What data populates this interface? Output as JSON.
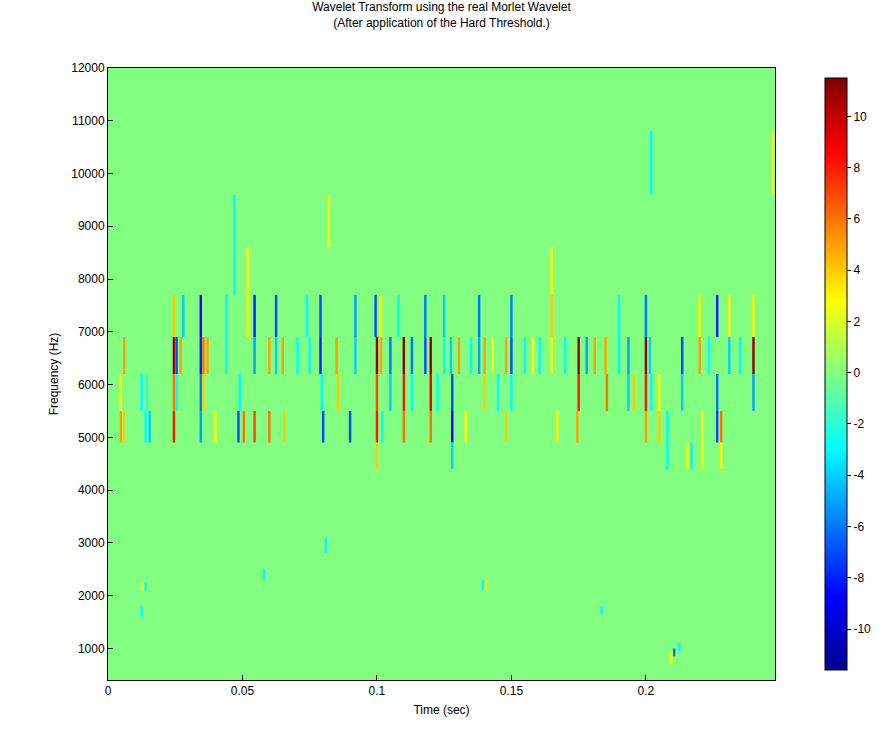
{
  "chart_data": {
    "type": "heatmap",
    "title": "Wavelet Transform using the real Morlet Wavelet",
    "subtitle": "(After application of the Hard Threshold.)",
    "x_label": "Time (sec)",
    "y_label": "Frequency (Hz)",
    "xlim": [
      0,
      0.248
    ],
    "xticks": [
      0,
      0.05,
      0.1,
      0.15,
      0.2
    ],
    "ylim": [
      400,
      12000
    ],
    "yticks": [
      1000,
      2000,
      3000,
      4000,
      5000,
      6000,
      7000,
      8000,
      9000,
      10000,
      11000,
      12000
    ],
    "colorbar_range": [
      -11.6,
      11.5
    ],
    "colorbar_ticks": [
      -10,
      -8,
      -6,
      -4,
      -2,
      0,
      2,
      4,
      6,
      8,
      10
    ],
    "cells": [
      {
        "time": 0.0048,
        "f_low": 4900,
        "f_high": 5500,
        "value": 5
      },
      {
        "time": 0.0048,
        "f_low": 5500,
        "f_high": 6200,
        "value": 3
      },
      {
        "time": 0.006,
        "f_low": 6200,
        "f_high": 6900,
        "value": 5
      },
      {
        "time": 0.006,
        "f_low": 4900,
        "f_high": 5500,
        "value": 4
      },
      {
        "time": 0.0125,
        "f_low": 5500,
        "f_high": 6200,
        "value": -3
      },
      {
        "time": 0.0125,
        "f_low": 1600,
        "f_high": 1800,
        "value": -3
      },
      {
        "time": 0.013,
        "f_low": 2100,
        "f_high": 2250,
        "value": 3
      },
      {
        "time": 0.014,
        "f_low": 2100,
        "f_high": 2250,
        "value": -3
      },
      {
        "time": 0.014,
        "f_low": 4900,
        "f_high": 5500,
        "value": -3
      },
      {
        "time": 0.0145,
        "f_low": 5500,
        "f_high": 6200,
        "value": -2
      },
      {
        "time": 0.0155,
        "f_low": 4900,
        "f_high": 5500,
        "value": -4
      },
      {
        "time": 0.0245,
        "f_low": 6900,
        "f_high": 7700,
        "value": 4
      },
      {
        "time": 0.0245,
        "f_low": 6200,
        "f_high": 6900,
        "value": 11
      },
      {
        "time": 0.0245,
        "f_low": 5500,
        "f_high": 6200,
        "value": 6
      },
      {
        "time": 0.0245,
        "f_low": 4900,
        "f_high": 5500,
        "value": 8
      },
      {
        "time": 0.0255,
        "f_low": 6200,
        "f_high": 6900,
        "value": -7
      },
      {
        "time": 0.0255,
        "f_low": 5500,
        "f_high": 6200,
        "value": -3
      },
      {
        "time": 0.027,
        "f_low": 6200,
        "f_high": 6900,
        "value": 5
      },
      {
        "time": 0.028,
        "f_low": 6900,
        "f_high": 7700,
        "value": -4
      },
      {
        "time": 0.0345,
        "f_low": 6900,
        "f_high": 7700,
        "value": -9
      },
      {
        "time": 0.0345,
        "f_low": 6200,
        "f_high": 6900,
        "value": -8
      },
      {
        "time": 0.0345,
        "f_low": 5500,
        "f_high": 6200,
        "value": -6
      },
      {
        "time": 0.0345,
        "f_low": 4900,
        "f_high": 5500,
        "value": -5
      },
      {
        "time": 0.0355,
        "f_low": 6200,
        "f_high": 6900,
        "value": 6
      },
      {
        "time": 0.0355,
        "f_low": 5500,
        "f_high": 6200,
        "value": 4
      },
      {
        "time": 0.037,
        "f_low": 6200,
        "f_high": 6900,
        "value": 5
      },
      {
        "time": 0.04,
        "f_low": 4900,
        "f_high": 5500,
        "value": 3
      },
      {
        "time": 0.044,
        "f_low": 6900,
        "f_high": 7700,
        "value": -3
      },
      {
        "time": 0.044,
        "f_low": 6200,
        "f_high": 6900,
        "value": -3
      },
      {
        "time": 0.047,
        "f_low": 7700,
        "f_high": 8600,
        "value": -3
      },
      {
        "time": 0.047,
        "f_low": 8600,
        "f_high": 9600,
        "value": -3
      },
      {
        "time": 0.0485,
        "f_low": 4900,
        "f_high": 5500,
        "value": -7
      },
      {
        "time": 0.049,
        "f_low": 5500,
        "f_high": 6200,
        "value": -3
      },
      {
        "time": 0.0505,
        "f_low": 4900,
        "f_high": 5500,
        "value": 6
      },
      {
        "time": 0.052,
        "f_low": 7700,
        "f_high": 8600,
        "value": 3
      },
      {
        "time": 0.052,
        "f_low": 6900,
        "f_high": 7700,
        "value": 3
      },
      {
        "time": 0.0545,
        "f_low": 6900,
        "f_high": 7700,
        "value": -8
      },
      {
        "time": 0.0545,
        "f_low": 6200,
        "f_high": 6900,
        "value": -5
      },
      {
        "time": 0.0545,
        "f_low": 4900,
        "f_high": 5500,
        "value": 7
      },
      {
        "time": 0.058,
        "f_low": 2300,
        "f_high": 2500,
        "value": -3
      },
      {
        "time": 0.06,
        "f_low": 4900,
        "f_high": 5500,
        "value": 6
      },
      {
        "time": 0.06,
        "f_low": 6200,
        "f_high": 6900,
        "value": 5
      },
      {
        "time": 0.0625,
        "f_low": 6900,
        "f_high": 7700,
        "value": -7
      },
      {
        "time": 0.0625,
        "f_low": 6200,
        "f_high": 6900,
        "value": -4
      },
      {
        "time": 0.065,
        "f_low": 6200,
        "f_high": 6900,
        "value": 5
      },
      {
        "time": 0.0655,
        "f_low": 4900,
        "f_high": 5500,
        "value": 4
      },
      {
        "time": 0.0705,
        "f_low": 6200,
        "f_high": 6900,
        "value": -3
      },
      {
        "time": 0.074,
        "f_low": 6900,
        "f_high": 7700,
        "value": -3
      },
      {
        "time": 0.075,
        "f_low": 6200,
        "f_high": 6900,
        "value": -3
      },
      {
        "time": 0.079,
        "f_low": 6900,
        "f_high": 7700,
        "value": -7
      },
      {
        "time": 0.079,
        "f_low": 6200,
        "f_high": 6900,
        "value": -8
      },
      {
        "time": 0.0795,
        "f_low": 5500,
        "f_high": 6200,
        "value": -3
      },
      {
        "time": 0.08,
        "f_low": 4900,
        "f_high": 5500,
        "value": -7
      },
      {
        "time": 0.081,
        "f_low": 2800,
        "f_high": 3100,
        "value": -3
      },
      {
        "time": 0.082,
        "f_low": 8600,
        "f_high": 9600,
        "value": 3
      },
      {
        "time": 0.085,
        "f_low": 6200,
        "f_high": 6900,
        "value": 5
      },
      {
        "time": 0.0855,
        "f_low": 5500,
        "f_high": 6200,
        "value": 4
      },
      {
        "time": 0.09,
        "f_low": 4900,
        "f_high": 5500,
        "value": -7
      },
      {
        "time": 0.092,
        "f_low": 6900,
        "f_high": 7700,
        "value": -5
      },
      {
        "time": 0.092,
        "f_low": 6200,
        "f_high": 6900,
        "value": -4
      },
      {
        "time": 0.0995,
        "f_low": 6900,
        "f_high": 7700,
        "value": -7
      },
      {
        "time": 0.1,
        "f_low": 6200,
        "f_high": 6900,
        "value": 11
      },
      {
        "time": 0.1,
        "f_low": 5500,
        "f_high": 6200,
        "value": 7
      },
      {
        "time": 0.1,
        "f_low": 4900,
        "f_high": 5500,
        "value": 8
      },
      {
        "time": 0.1,
        "f_low": 4400,
        "f_high": 4900,
        "value": 4
      },
      {
        "time": 0.1015,
        "f_low": 6900,
        "f_high": 7700,
        "value": 3
      },
      {
        "time": 0.1015,
        "f_low": 6200,
        "f_high": 6900,
        "value": 5
      },
      {
        "time": 0.102,
        "f_low": 4900,
        "f_high": 5500,
        "value": -3
      },
      {
        "time": 0.105,
        "f_low": 6200,
        "f_high": 6900,
        "value": -6
      },
      {
        "time": 0.105,
        "f_low": 5500,
        "f_high": 6200,
        "value": -4
      },
      {
        "time": 0.108,
        "f_low": 6900,
        "f_high": 7700,
        "value": -3
      },
      {
        "time": 0.11,
        "f_low": 6200,
        "f_high": 6900,
        "value": 11
      },
      {
        "time": 0.11,
        "f_low": 5500,
        "f_high": 6200,
        "value": 8
      },
      {
        "time": 0.11,
        "f_low": 4900,
        "f_high": 5500,
        "value": 6
      },
      {
        "time": 0.113,
        "f_low": 6200,
        "f_high": 6900,
        "value": -6
      },
      {
        "time": 0.113,
        "f_low": 5500,
        "f_high": 6200,
        "value": -3
      },
      {
        "time": 0.118,
        "f_low": 6900,
        "f_high": 7700,
        "value": -6
      },
      {
        "time": 0.118,
        "f_low": 6200,
        "f_high": 6900,
        "value": -7
      },
      {
        "time": 0.12,
        "f_low": 6200,
        "f_high": 6900,
        "value": 11
      },
      {
        "time": 0.12,
        "f_low": 5500,
        "f_high": 6200,
        "value": 9
      },
      {
        "time": 0.12,
        "f_low": 4900,
        "f_high": 5500,
        "value": 6
      },
      {
        "time": 0.1225,
        "f_low": 5500,
        "f_high": 6200,
        "value": -3
      },
      {
        "time": 0.125,
        "f_low": 6900,
        "f_high": 7700,
        "value": -4
      },
      {
        "time": 0.125,
        "f_low": 6200,
        "f_high": 6900,
        "value": -3
      },
      {
        "time": 0.1275,
        "f_low": 6200,
        "f_high": 6900,
        "value": -4
      },
      {
        "time": 0.128,
        "f_low": 5500,
        "f_high": 6200,
        "value": -7
      },
      {
        "time": 0.128,
        "f_low": 4900,
        "f_high": 5500,
        "value": -9
      },
      {
        "time": 0.128,
        "f_low": 4400,
        "f_high": 4900,
        "value": -4
      },
      {
        "time": 0.1305,
        "f_low": 6200,
        "f_high": 6900,
        "value": 5
      },
      {
        "time": 0.133,
        "f_low": 4900,
        "f_high": 5500,
        "value": 3
      },
      {
        "time": 0.135,
        "f_low": 6200,
        "f_high": 6900,
        "value": -3
      },
      {
        "time": 0.138,
        "f_low": 6900,
        "f_high": 7700,
        "value": -6
      },
      {
        "time": 0.138,
        "f_low": 6200,
        "f_high": 6900,
        "value": -5
      },
      {
        "time": 0.1395,
        "f_low": 2100,
        "f_high": 2300,
        "value": -3
      },
      {
        "time": 0.1405,
        "f_low": 2100,
        "f_high": 2300,
        "value": 3
      },
      {
        "time": 0.14,
        "f_low": 6200,
        "f_high": 6900,
        "value": 5
      },
      {
        "time": 0.14,
        "f_low": 5500,
        "f_high": 6200,
        "value": 4
      },
      {
        "time": 0.143,
        "f_low": 6200,
        "f_high": 6900,
        "value": 3
      },
      {
        "time": 0.145,
        "f_low": 5500,
        "f_high": 6200,
        "value": -3
      },
      {
        "time": 0.148,
        "f_low": 6200,
        "f_high": 6900,
        "value": 5
      },
      {
        "time": 0.148,
        "f_low": 4900,
        "f_high": 5500,
        "value": 4
      },
      {
        "time": 0.15,
        "f_low": 6900,
        "f_high": 7700,
        "value": -6
      },
      {
        "time": 0.15,
        "f_low": 6200,
        "f_high": 6900,
        "value": -7
      },
      {
        "time": 0.15,
        "f_low": 5500,
        "f_high": 6200,
        "value": -3
      },
      {
        "time": 0.155,
        "f_low": 6200,
        "f_high": 6900,
        "value": -3
      },
      {
        "time": 0.158,
        "f_low": 6200,
        "f_high": 6900,
        "value": 3
      },
      {
        "time": 0.1605,
        "f_low": 6200,
        "f_high": 6900,
        "value": -3
      },
      {
        "time": 0.165,
        "f_low": 7700,
        "f_high": 8600,
        "value": 3
      },
      {
        "time": 0.165,
        "f_low": 6900,
        "f_high": 7700,
        "value": 4
      },
      {
        "time": 0.165,
        "f_low": 6200,
        "f_high": 6900,
        "value": 3
      },
      {
        "time": 0.167,
        "f_low": 4900,
        "f_high": 5500,
        "value": 3
      },
      {
        "time": 0.17,
        "f_low": 6200,
        "f_high": 6900,
        "value": -3
      },
      {
        "time": 0.175,
        "f_low": 6200,
        "f_high": 6900,
        "value": 11
      },
      {
        "time": 0.175,
        "f_low": 5500,
        "f_high": 6200,
        "value": 8
      },
      {
        "time": 0.1745,
        "f_low": 4900,
        "f_high": 5500,
        "value": 5
      },
      {
        "time": 0.178,
        "f_low": 6200,
        "f_high": 6900,
        "value": -5
      },
      {
        "time": 0.181,
        "f_low": 6200,
        "f_high": 6900,
        "value": 5
      },
      {
        "time": 0.1835,
        "f_low": 1650,
        "f_high": 1800,
        "value": -3
      },
      {
        "time": 0.185,
        "f_low": 6200,
        "f_high": 6900,
        "value": 5
      },
      {
        "time": 0.1855,
        "f_low": 5500,
        "f_high": 6200,
        "value": 6
      },
      {
        "time": 0.19,
        "f_low": 6900,
        "f_high": 7700,
        "value": -3
      },
      {
        "time": 0.19,
        "f_low": 6200,
        "f_high": 6900,
        "value": -3
      },
      {
        "time": 0.1935,
        "f_low": 6200,
        "f_high": 6900,
        "value": -5
      },
      {
        "time": 0.1935,
        "f_low": 5500,
        "f_high": 6200,
        "value": -4
      },
      {
        "time": 0.1955,
        "f_low": 5500,
        "f_high": 6200,
        "value": 4
      },
      {
        "time": 0.2,
        "f_low": 6900,
        "f_high": 7700,
        "value": -6
      },
      {
        "time": 0.2,
        "f_low": 6200,
        "f_high": 6900,
        "value": 11
      },
      {
        "time": 0.2,
        "f_low": 5500,
        "f_high": 6200,
        "value": 8
      },
      {
        "time": 0.2,
        "f_low": 4900,
        "f_high": 5500,
        "value": 5
      },
      {
        "time": 0.202,
        "f_low": 9600,
        "f_high": 10800,
        "value": -3
      },
      {
        "time": 0.202,
        "f_low": 5500,
        "f_high": 6200,
        "value": -3
      },
      {
        "time": 0.2015,
        "f_low": 6200,
        "f_high": 6900,
        "value": -4
      },
      {
        "time": 0.205,
        "f_low": 4900,
        "f_high": 5500,
        "value": 4
      },
      {
        "time": 0.205,
        "f_low": 5500,
        "f_high": 6200,
        "value": 3
      },
      {
        "time": 0.208,
        "f_low": 4400,
        "f_high": 4900,
        "value": -3
      },
      {
        "time": 0.208,
        "f_low": 4900,
        "f_high": 5500,
        "value": -3
      },
      {
        "time": 0.2095,
        "f_low": 700,
        "f_high": 950,
        "value": 3
      },
      {
        "time": 0.2105,
        "f_low": 850,
        "f_high": 1000,
        "value": -6
      },
      {
        "time": 0.2125,
        "f_low": 950,
        "f_high": 1100,
        "value": -3
      },
      {
        "time": 0.2135,
        "f_low": 6200,
        "f_high": 6900,
        "value": -7
      },
      {
        "time": 0.2135,
        "f_low": 5500,
        "f_high": 6200,
        "value": -4
      },
      {
        "time": 0.2155,
        "f_low": 4400,
        "f_high": 4900,
        "value": 3
      },
      {
        "time": 0.217,
        "f_low": 4400,
        "f_high": 4900,
        "value": -3
      },
      {
        "time": 0.22,
        "f_low": 6900,
        "f_high": 7700,
        "value": 3
      },
      {
        "time": 0.22,
        "f_low": 6200,
        "f_high": 6900,
        "value": 5
      },
      {
        "time": 0.221,
        "f_low": 4400,
        "f_high": 4900,
        "value": 3
      },
      {
        "time": 0.221,
        "f_low": 4900,
        "f_high": 5500,
        "value": 3
      },
      {
        "time": 0.2235,
        "f_low": 6200,
        "f_high": 6900,
        "value": -3
      },
      {
        "time": 0.2265,
        "f_low": 6900,
        "f_high": 7700,
        "value": -8
      },
      {
        "time": 0.2265,
        "f_low": 5500,
        "f_high": 6200,
        "value": -6
      },
      {
        "time": 0.2265,
        "f_low": 4900,
        "f_high": 5500,
        "value": -7
      },
      {
        "time": 0.228,
        "f_low": 4900,
        "f_high": 5500,
        "value": 6
      },
      {
        "time": 0.228,
        "f_low": 4400,
        "f_high": 4900,
        "value": 3
      },
      {
        "time": 0.231,
        "f_low": 6900,
        "f_high": 7700,
        "value": 3
      },
      {
        "time": 0.231,
        "f_low": 6200,
        "f_high": 6900,
        "value": -4
      },
      {
        "time": 0.235,
        "f_low": 6200,
        "f_high": 6900,
        "value": -3
      },
      {
        "time": 0.24,
        "f_low": 6900,
        "f_high": 7700,
        "value": 3
      },
      {
        "time": 0.24,
        "f_low": 6200,
        "f_high": 6900,
        "value": 11
      },
      {
        "time": 0.24,
        "f_low": 5500,
        "f_high": 6200,
        "value": -5
      },
      {
        "time": 0.2472,
        "f_low": 9600,
        "f_high": 10800,
        "value": 3
      }
    ]
  }
}
